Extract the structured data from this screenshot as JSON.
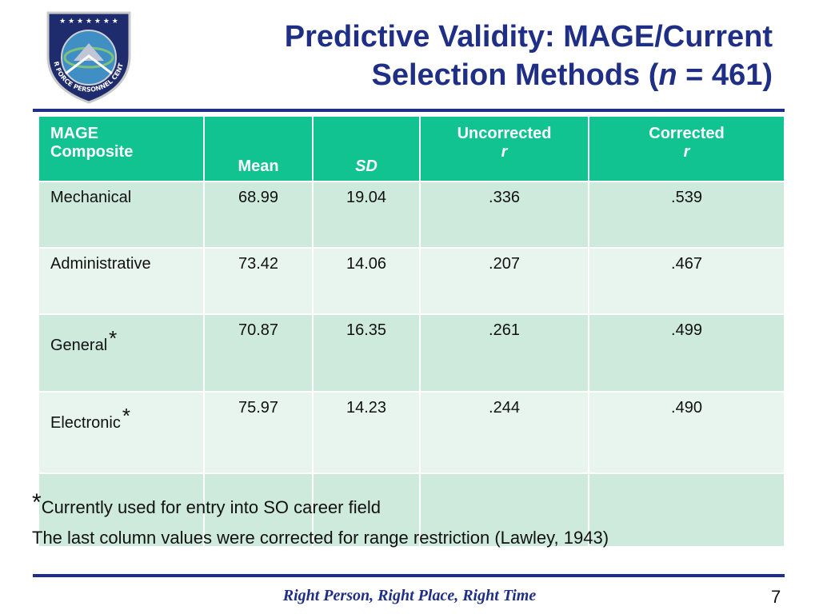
{
  "slide": {
    "title_line1": "Predictive Validity: MAGE/Current",
    "title_line2_pre": "Selection Methods (",
    "title_line2_n": "n",
    "title_line2_post": " = 461)",
    "logo_text": "AIR FORCE PERSONNEL CENTER",
    "footer": "Right Person, Right Place, Right Time",
    "page_number": "7",
    "colors": {
      "title": "#1f2f86",
      "header_bg": "#12c392",
      "row_dark": "#cdeadc",
      "row_light": "#e7f5ee"
    }
  },
  "table": {
    "headers": {
      "composite_line1": "MAGE",
      "composite_line2": "Composite",
      "mean": "Mean",
      "sd": "SD",
      "uncorrected_line1": "Uncorrected",
      "uncorrected_line2": "r",
      "corrected_line1": "Corrected",
      "corrected_line2": "r"
    },
    "rows": [
      {
        "composite": "Mechanical",
        "star": "",
        "mean": "68.99",
        "sd": "19.04",
        "uncorrected": ".336",
        "corrected": ".539"
      },
      {
        "composite": "Administrative",
        "star": "",
        "mean": "73.42",
        "sd": "14.06",
        "uncorrected": ".207",
        "corrected": ".467"
      },
      {
        "composite": "General",
        "star": "*",
        "mean": "70.87",
        "sd": "16.35",
        "uncorrected": ".261",
        "corrected": ".499"
      },
      {
        "composite": "Electronic",
        "star": "*",
        "mean": "75.97",
        "sd": "14.23",
        "uncorrected": ".244",
        "corrected": ".490"
      }
    ]
  },
  "notes": {
    "star": "*",
    "note1": "Currently used for entry into SO career field",
    "note2": "The last column values were corrected for range restriction (Lawley, 1943)"
  }
}
